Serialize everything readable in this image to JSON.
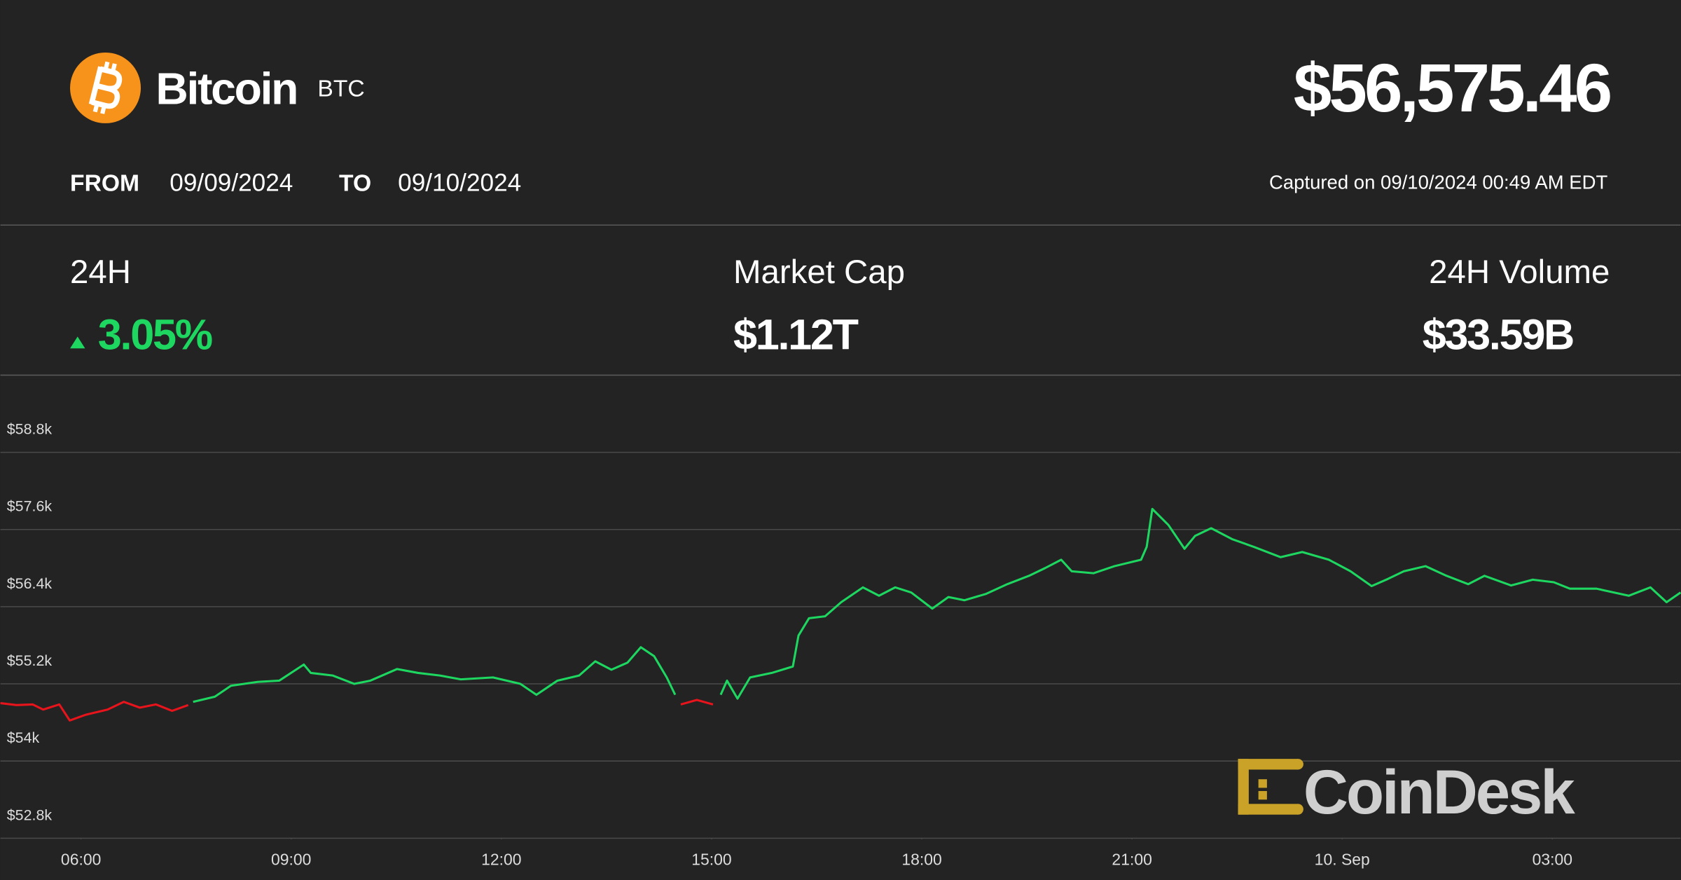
{
  "header": {
    "name": "Bitcoin",
    "symbol": "BTC",
    "price": "$56,575.46",
    "from_label": "FROM",
    "from": "09/09/2024",
    "to_label": "TO",
    "to": "09/10/2024",
    "captured": "Captured on 09/10/2024 00:49 AM EDT"
  },
  "stats": [
    {
      "label": "24H",
      "value": "3.05%"
    },
    {
      "label": "Market Cap",
      "value": "$1.12T"
    },
    {
      "label": "24H Volume",
      "value": "$33.59B"
    }
  ],
  "watermark": "CoinDesk",
  "chart_data": {
    "type": "line",
    "x": [
      4.85,
      5.08,
      5.31,
      5.46,
      5.69,
      5.84,
      6.07,
      6.38,
      6.61,
      6.84,
      7.07,
      7.3,
      7.53,
      7.6,
      7.91,
      8.14,
      8.52,
      8.83,
      9.18,
      9.28,
      9.59,
      9.9,
      10.13,
      10.51,
      10.81,
      11.12,
      11.42,
      11.88,
      12.27,
      12.5,
      12.8,
      13.11,
      13.34,
      13.57,
      13.8,
      13.99,
      14.18,
      14.36,
      14.48,
      14.56,
      14.79,
      15.02,
      15.13,
      15.22,
      15.37,
      15.55,
      15.86,
      16.16,
      16.24,
      16.39,
      16.62,
      16.85,
      17.16,
      17.39,
      17.62,
      17.85,
      18.15,
      18.38,
      18.61,
      18.92,
      19.22,
      19.53,
      19.76,
      19.99,
      20.14,
      20.45,
      20.75,
      21.13,
      21.21,
      21.29,
      21.52,
      21.75,
      21.9,
      22.13,
      22.43,
      22.74,
      23.12,
      23.43,
      23.81,
      24.12,
      24.42,
      24.65,
      24.88,
      25.19,
      25.49,
      25.8,
      26.03,
      26.41,
      26.72,
      27.02,
      27.25,
      27.63,
      28.09,
      28.4,
      28.63,
      28.83
    ],
    "xlim": [
      4.85,
      28.83
    ],
    "xticks": [
      {
        "value": 6,
        "label": "06:00"
      },
      {
        "value": 9,
        "label": "09:00"
      },
      {
        "value": 12,
        "label": "12:00"
      },
      {
        "value": 15,
        "label": "15:00"
      },
      {
        "value": 18,
        "label": "18:00"
      },
      {
        "value": 21,
        "label": "21:00"
      },
      {
        "value": 24,
        "label": "10. Sep"
      },
      {
        "value": 27,
        "label": "03:00"
      }
    ],
    "ylim": [
      52800,
      60000
    ],
    "yticks": [
      {
        "value": 52800,
        "label": "$52.8k"
      },
      {
        "value": 54000,
        "label": "$54k"
      },
      {
        "value": 55200,
        "label": "$55.2k"
      },
      {
        "value": 56400,
        "label": "$56.4k"
      },
      {
        "value": 57600,
        "label": "$57.6k"
      },
      {
        "value": 58800,
        "label": "$58.8k"
      }
    ],
    "grid": true,
    "series": [
      {
        "color": "#e8141c",
        "values": [
          54900,
          54870,
          54880,
          54800,
          54880,
          54630,
          54720,
          54800,
          54920,
          54830,
          54880,
          54780,
          54870,
          null,
          null,
          null,
          null,
          null,
          null,
          null,
          null,
          null,
          null,
          null,
          null,
          null,
          null,
          null,
          null,
          null,
          null,
          null,
          null,
          null,
          null,
          null,
          null,
          null,
          null,
          54880,
          54950,
          54880,
          null,
          null,
          null,
          null,
          null,
          null,
          null,
          null,
          null,
          null,
          null,
          null,
          null,
          null,
          null,
          null,
          null,
          null,
          null,
          null,
          null,
          null,
          null,
          null,
          null,
          null,
          null,
          null,
          null,
          null,
          null,
          null,
          null,
          null,
          null,
          null,
          null,
          null,
          null,
          null,
          null,
          null,
          null,
          null,
          null,
          null,
          null,
          null,
          null,
          null,
          null,
          null,
          null,
          null
        ]
      },
      {
        "color": "#1ed760",
        "values": [
          null,
          null,
          null,
          null,
          null,
          null,
          null,
          null,
          null,
          null,
          null,
          null,
          null,
          54920,
          55000,
          55170,
          55230,
          55250,
          55500,
          55370,
          55330,
          55200,
          55250,
          55430,
          55370,
          55330,
          55270,
          55300,
          55200,
          55030,
          55250,
          55330,
          55550,
          55420,
          55530,
          55770,
          55630,
          55300,
          55030,
          null,
          null,
          null,
          55030,
          55250,
          54970,
          55300,
          55370,
          55470,
          55950,
          56220,
          56250,
          56470,
          56700,
          56570,
          56700,
          56620,
          56370,
          56550,
          56500,
          56600,
          56750,
          56880,
          57000,
          57130,
          56950,
          56920,
          57030,
          57130,
          57330,
          57920,
          57670,
          57300,
          57500,
          57620,
          57450,
          57330,
          57170,
          57250,
          57130,
          56950,
          56720,
          56830,
          56950,
          57030,
          56880,
          56750,
          56880,
          56730,
          56820,
          56780,
          56680,
          56680,
          56570,
          56700,
          56470,
          56620
        ]
      }
    ]
  }
}
